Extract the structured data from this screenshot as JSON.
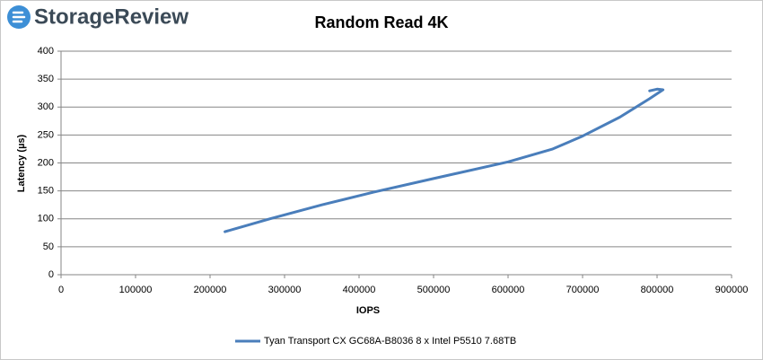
{
  "logo": "StorageReview",
  "chart_data": {
    "type": "line",
    "title": "Random Read 4K",
    "x_label": "IOPS",
    "y_label": "Latency (µs)",
    "xlim": [
      0,
      900000
    ],
    "xticks": [
      0,
      100000,
      200000,
      300000,
      400000,
      500000,
      600000,
      700000,
      800000,
      900000
    ],
    "ylim": [
      0,
      400
    ],
    "yticks": [
      0,
      50,
      100,
      150,
      200,
      250,
      300,
      350,
      400
    ],
    "grid": true,
    "legend": "bottom",
    "series": [
      {
        "name": "Tyan Transport CX GC68A-B8036 8 x Intel P5510 7.68TB",
        "color": "#4a7ebb",
        "x": [
          220000,
          280000,
          350000,
          420000,
          500000,
          600000,
          660000,
          700000,
          750000,
          790000,
          808000,
          800000,
          790000
        ],
        "values": [
          77,
          100,
          125,
          148,
          172,
          202,
          225,
          248,
          282,
          315,
          331,
          332,
          329
        ]
      }
    ]
  }
}
